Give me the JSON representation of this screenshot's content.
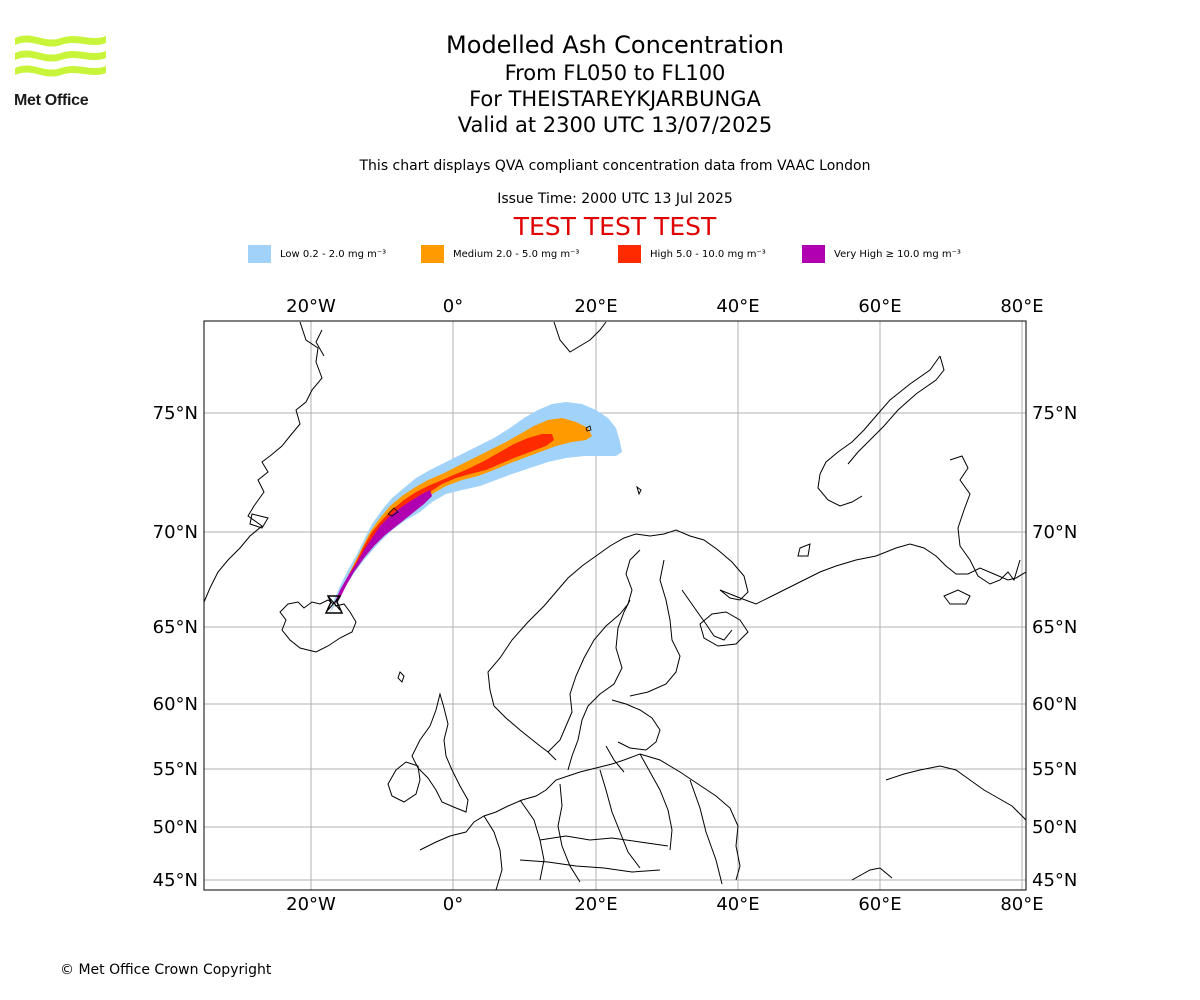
{
  "logo": {
    "text": "Met Office",
    "color": "#c8f53a"
  },
  "title": {
    "main": "Modelled Ash Concentration",
    "levels": "From FL050 to FL100",
    "volcano": "For THEISTAREYKJARBUNGA",
    "valid": "Valid at 2300 UTC 13/07/2025"
  },
  "subtitle": "This chart displays QVA compliant concentration data from VAAC London",
  "issue_time": "Issue Time: 2000 UTC 13 Jul 2025",
  "test_banner": "TEST TEST TEST",
  "legend": [
    {
      "label": "Low 0.2 - 2.0 mg m⁻³",
      "color": "#a0d2fa"
    },
    {
      "label": "Medium 2.0 - 5.0 mg m⁻³",
      "color": "#ff9a00"
    },
    {
      "label": "High 5.0 - 10.0 mg m⁻³",
      "color": "#ff2a00"
    },
    {
      "label": "Very High ≥ 10.0 mg m⁻³",
      "color": "#b000b0"
    }
  ],
  "map": {
    "lon_labels": [
      "20°W",
      "0°",
      "20°E",
      "40°E",
      "60°E",
      "80°E"
    ],
    "lat_labels": [
      "75°N",
      "70°N",
      "65°N",
      "60°N",
      "55°N",
      "50°N",
      "45°N"
    ],
    "volcano_marker": "volcano-icon"
  },
  "copyright": "© Met Office Crown Copyright"
}
